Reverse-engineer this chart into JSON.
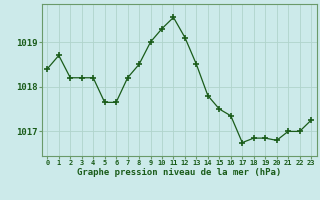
{
  "x": [
    0,
    1,
    2,
    3,
    4,
    5,
    6,
    7,
    8,
    9,
    10,
    11,
    12,
    13,
    14,
    15,
    16,
    17,
    18,
    19,
    20,
    21,
    22,
    23
  ],
  "y": [
    1018.4,
    1018.7,
    1018.2,
    1018.2,
    1018.2,
    1017.65,
    1017.65,
    1018.2,
    1018.5,
    1019.0,
    1019.3,
    1019.55,
    1019.1,
    1018.5,
    1017.8,
    1017.5,
    1017.35,
    1016.75,
    1016.85,
    1016.85,
    1016.8,
    1017.0,
    1017.0,
    1017.25
  ],
  "line_color": "#1a5c1a",
  "marker_color": "#1a5c1a",
  "bg_color": "#cceaea",
  "grid_color": "#b0d4cc",
  "border_color": "#6a9a6a",
  "xlabel": "Graphe pression niveau de la mer (hPa)",
  "xlabel_color": "#1a5c1a",
  "tick_color": "#1a5c1a",
  "ylim": [
    1016.45,
    1019.85
  ],
  "yticks": [
    1017,
    1018,
    1019
  ],
  "xticks": [
    0,
    1,
    2,
    3,
    4,
    5,
    6,
    7,
    8,
    9,
    10,
    11,
    12,
    13,
    14,
    15,
    16,
    17,
    18,
    19,
    20,
    21,
    22,
    23
  ],
  "xtick_labels": [
    "0",
    "1",
    "2",
    "3",
    "4",
    "5",
    "6",
    "7",
    "8",
    "9",
    "10",
    "11",
    "12",
    "13",
    "14",
    "15",
    "16",
    "17",
    "18",
    "19",
    "20",
    "21",
    "22",
    "23"
  ]
}
